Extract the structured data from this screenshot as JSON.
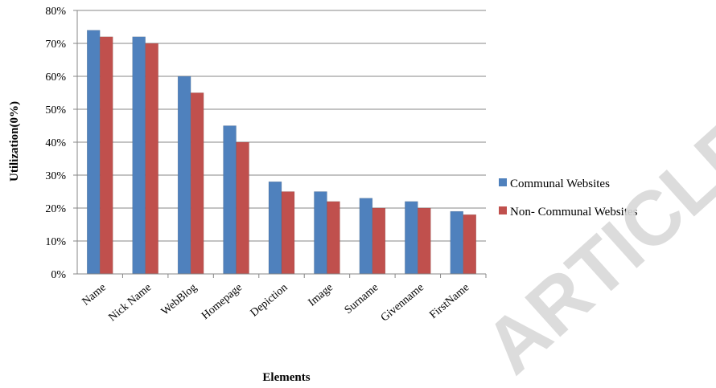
{
  "chart_data": {
    "type": "bar",
    "title": "",
    "xlabel": "Elements",
    "ylabel": "Utilization(0%)",
    "ylim": [
      0,
      80
    ],
    "ytick_labels": [
      "0%",
      "10%",
      "20%",
      "30%",
      "40%",
      "50%",
      "60%",
      "70%",
      "80%"
    ],
    "grid": true,
    "legend_position": "right",
    "categories": [
      "Name",
      "Nick Name",
      "WebBlog",
      "Homepage",
      "Depiction",
      "Image",
      "Surname",
      "Givenname",
      "FirstName"
    ],
    "series": [
      {
        "name": "Communal Websites",
        "color": "#4f81bd",
        "values": [
          74,
          72,
          60,
          45,
          28,
          25,
          23,
          22,
          19
        ]
      },
      {
        "name": "Non- Communal Websites",
        "color": "#c0504d",
        "values": [
          72,
          70,
          55,
          40,
          25,
          22,
          20,
          20,
          18
        ]
      }
    ]
  },
  "watermark": {
    "text": "ARTICLE",
    "color": "#d9d9d9"
  }
}
